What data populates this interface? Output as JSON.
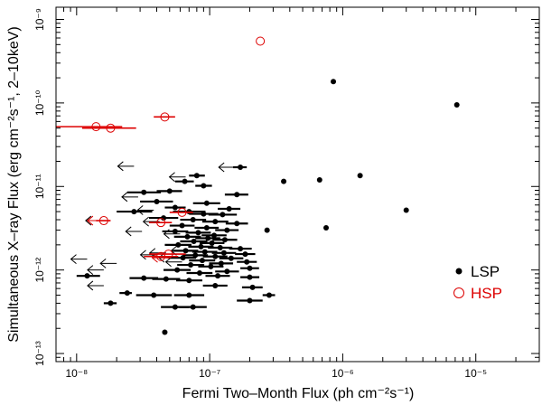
{
  "chart_data": {
    "type": "scatter",
    "xlabel": "Fermi Two–Month Flux (ph cm⁻²s⁻¹)",
    "ylabel": "Simultaneous X–ray Flux (erg cm⁻²s⁻¹, 2–10keV)",
    "x_scale": "log",
    "y_scale": "log",
    "xlim": [
      7e-09,
      3e-05
    ],
    "ylim": [
      8e-14,
      1.4e-09
    ],
    "x_ticks": [
      {
        "value": 1e-08,
        "label": "10⁻⁸"
      },
      {
        "value": 1e-07,
        "label": "10⁻⁷"
      },
      {
        "value": 1e-06,
        "label": "10⁻⁶"
      },
      {
        "value": 1e-05,
        "label": "10⁻⁵"
      }
    ],
    "y_ticks": [
      {
        "value": 1e-13,
        "label": "10⁻¹³"
      },
      {
        "value": 1e-12,
        "label": "10⁻¹²"
      },
      {
        "value": 1e-11,
        "label": "10⁻¹¹"
      },
      {
        "value": 1e-10,
        "label": "10⁻¹⁰"
      },
      {
        "value": 1e-09,
        "label": "10⁻⁹"
      }
    ],
    "legend_position": "bottom-right",
    "colors": {
      "LSP": "#000000",
      "HSP": "#dd0000"
    },
    "series": [
      {
        "name": "LSP",
        "marker": "filled-circle",
        "points": [
          [
            8.5e-07,
            1.8e-10,
            null,
            null
          ],
          [
            7.2e-06,
            9.5e-11,
            null,
            null
          ],
          [
            1.35e-06,
            1.35e-11,
            null,
            null
          ],
          [
            3.6e-07,
            1.15e-11,
            null,
            null
          ],
          [
            6.7e-07,
            1.2e-11,
            null,
            null
          ],
          [
            3e-06,
            5.2e-12,
            null,
            null
          ],
          [
            7.5e-07,
            3.2e-12,
            null,
            null
          ],
          [
            2.7e-07,
            3e-12,
            null,
            null
          ],
          [
            2.8e-07,
            5e-13,
            2.5e-07,
            3.1e-07
          ],
          [
            1.2e-08,
            8.5e-13,
            1e-08,
            1.5e-08
          ],
          [
            1.8e-08,
            4e-13,
            1.6e-08,
            2e-08
          ],
          [
            2.4e-08,
            5.3e-13,
            2.1e-08,
            2.6e-08
          ],
          [
            4.6e-08,
            1.8e-13,
            4.4e-08,
            4.8e-08
          ],
          [
            1.7e-07,
            1.7e-11,
            1.5e-07,
            1.9e-07
          ],
          [
            6.5e-08,
            1.15e-11,
            5.5e-08,
            7.6e-08
          ],
          [
            8e-08,
            1.35e-11,
            7e-08,
            9.2e-08
          ],
          [
            9e-08,
            1.02e-11,
            7.8e-08,
            1.04e-07
          ],
          [
            3.2e-08,
            8.5e-12,
            2.4e-08,
            4.3e-08
          ],
          [
            5e-08,
            8.8e-12,
            4e-08,
            6.2e-08
          ],
          [
            1.6e-07,
            8e-12,
            1.3e-07,
            1.95e-07
          ],
          [
            4e-08,
            6.6e-12,
            3e-08,
            5.3e-08
          ],
          [
            9.5e-08,
            6.3e-12,
            7.5e-08,
            1.2e-07
          ],
          [
            5.5e-08,
            5.6e-12,
            4.6e-08,
            6.6e-08
          ],
          [
            1.4e-07,
            5.4e-12,
            1.15e-07,
            1.7e-07
          ],
          [
            2.7e-08,
            5e-12,
            2e-08,
            3.7e-08
          ],
          [
            7e-08,
            5e-12,
            5.3e-08,
            9.3e-08
          ],
          [
            9e-08,
            4.7e-12,
            7e-08,
            1.16e-07
          ],
          [
            1.25e-07,
            4.6e-12,
            9.8e-08,
            1.6e-07
          ],
          [
            4.5e-08,
            4.2e-12,
            3.5e-08,
            5.8e-08
          ],
          [
            7.5e-08,
            4e-12,
            6e-08,
            9.4e-08
          ],
          [
            1.1e-07,
            3.8e-12,
            8.8e-08,
            1.38e-07
          ],
          [
            1.6e-07,
            3.6e-12,
            1.32e-07,
            1.94e-07
          ],
          [
            6.2e-08,
            3.4e-12,
            5e-08,
            7.7e-08
          ],
          [
            9.5e-08,
            3.2e-12,
            7.7e-08,
            1.17e-07
          ],
          [
            1.35e-07,
            3e-12,
            1.1e-07,
            1.65e-07
          ],
          [
            5.5e-08,
            2.9e-12,
            4.4e-08,
            6.9e-08
          ],
          [
            8.2e-08,
            2.8e-12,
            6.6e-08,
            1.02e-07
          ],
          [
            1.08e-07,
            2.6e-12,
            8.7e-08,
            1.34e-07
          ],
          [
            6.8e-08,
            2.5e-12,
            5.4e-08,
            8.6e-08
          ],
          [
            9.7e-08,
            2.4e-12,
            7.8e-08,
            1.2e-07
          ],
          [
            1.3e-07,
            2.3e-12,
            1.05e-07,
            1.61e-07
          ],
          [
            7.6e-08,
            2.2e-12,
            6e-08,
            9.6e-08
          ],
          [
            1.04e-07,
            2.1e-12,
            8.4e-08,
            1.29e-07
          ],
          [
            5.8e-08,
            2e-12,
            4.6e-08,
            7.3e-08
          ],
          [
            8.6e-08,
            1.9e-12,
            6.9e-08,
            1.07e-07
          ],
          [
            1.2e-07,
            1.85e-12,
            9.7e-08,
            1.48e-07
          ],
          [
            1.7e-07,
            1.8e-12,
            1.4e-07,
            2.07e-07
          ],
          [
            6.6e-08,
            1.7e-12,
            5.3e-08,
            8.2e-08
          ],
          [
            9.2e-08,
            1.65e-12,
            7.4e-08,
            1.14e-07
          ],
          [
            1.28e-07,
            1.6e-12,
            1.04e-07,
            1.58e-07
          ],
          [
            1.85e-07,
            1.55e-12,
            1.55e-07,
            2.2e-07
          ],
          [
            7.8e-08,
            1.5e-12,
            6.3e-08,
            9.7e-08
          ],
          [
            1.1e-07,
            1.45e-12,
            8.9e-08,
            1.36e-07
          ],
          [
            6.3e-08,
            1.4e-12,
            5e-08,
            7.9e-08
          ],
          [
            1.45e-07,
            1.38e-12,
            1.18e-07,
            1.79e-07
          ],
          [
            8.8e-08,
            1.3e-12,
            7e-08,
            1.1e-07
          ],
          [
            1.9e-07,
            1.25e-12,
            1.6e-07,
            2.26e-07
          ],
          [
            1.22e-07,
            1.2e-12,
            9.9e-08,
            1.5e-07
          ],
          [
            7.2e-08,
            1.15e-12,
            5.7e-08,
            9.1e-08
          ],
          [
            1.02e-07,
            1.1e-12,
            8.2e-08,
            1.27e-07
          ],
          [
            2e-07,
            1.05e-12,
            1.7e-07,
            2.35e-07
          ],
          [
            5.7e-08,
            1e-12,
            4.5e-08,
            7.2e-08
          ],
          [
            1.35e-07,
            9.6e-13,
            1.1e-07,
            1.66e-07
          ],
          [
            8.4e-08,
            9.2e-13,
            6.7e-08,
            1.05e-07
          ],
          [
            1.15e-07,
            8.5e-13,
            9.3e-08,
            1.42e-07
          ],
          [
            2e-07,
            8.2e-13,
            1.7e-07,
            2.36e-07
          ],
          [
            3.2e-08,
            8e-13,
            2.5e-08,
            4.1e-08
          ],
          [
            4.7e-08,
            7.8e-13,
            3.7e-08,
            6e-08
          ],
          [
            7e-08,
            7.5e-13,
            5.6e-08,
            8.8e-08
          ],
          [
            1.1e-07,
            6.5e-13,
            8.9e-08,
            1.36e-07
          ],
          [
            2.1e-07,
            6.2e-13,
            1.75e-07,
            2.5e-07
          ],
          [
            3.8e-08,
            5e-13,
            2.8e-08,
            5.2e-08
          ],
          [
            7e-08,
            5e-13,
            5.4e-08,
            9.1e-08
          ],
          [
            2e-07,
            4.3e-13,
            1.6e-07,
            2.5e-07
          ],
          [
            5.5e-08,
            3.6e-13,
            4.3e-08,
            7e-08
          ],
          [
            7.5e-08,
            3.6e-13,
            5.9e-08,
            9.5e-08
          ]
        ],
        "upper_limits": [
          [
            1.2e-08,
            1.35e-12
          ],
          [
            1.6e-08,
            1e-12
          ],
          [
            2e-08,
            1.2e-12
          ],
          [
            1.6e-08,
            6.5e-13
          ],
          [
            1.55e-08,
            3.9e-12
          ],
          [
            2.7e-08,
            1.75e-11
          ],
          [
            2.9e-08,
            7.5e-12
          ],
          [
            3.8e-08,
            5.2e-12
          ],
          [
            4.2e-08,
            3.8e-12
          ],
          [
            3.1e-08,
            2.9e-12
          ],
          [
            6.6e-08,
            1.3e-11
          ],
          [
            4e-08,
            1.52e-12
          ],
          [
            4.7e-08,
            1.6e-12
          ],
          [
            5.5e-08,
            1.4e-12
          ],
          [
            6.2e-08,
            1.25e-12
          ],
          [
            6e-08,
            2.7e-12
          ],
          [
            6.8e-08,
            1.7e-12
          ],
          [
            1.55e-07,
            1.7e-11
          ]
        ]
      },
      {
        "name": "HSP",
        "marker": "open-circle",
        "points": [
          [
            2.4e-07,
            5.5e-10,
            null,
            null
          ],
          [
            4.6e-08,
            6.8e-11,
            3.8e-08,
            5.5e-08
          ],
          [
            1.4e-08,
            5.2e-11,
            7e-09,
            2.2e-08
          ],
          [
            1.8e-08,
            5e-11,
            1.1e-08,
            2.8e-08
          ],
          [
            1.6e-08,
            3.9e-12,
            1.4e-08,
            1.8e-08
          ],
          [
            6.2e-08,
            4.9e-12,
            5e-08,
            7.5e-08
          ],
          [
            4.3e-08,
            3.7e-12,
            3.5e-08,
            5.2e-08
          ],
          [
            4.9e-08,
            1.55e-12,
            3.5e-08,
            6.6e-08
          ],
          [
            4.3e-08,
            1.45e-12,
            3.2e-08,
            5.8e-08
          ]
        ],
        "upper_limits": [
          [
            1.6e-08,
            3.9e-12
          ],
          [
            4.9e-08,
            1.4e-12
          ]
        ]
      }
    ]
  }
}
